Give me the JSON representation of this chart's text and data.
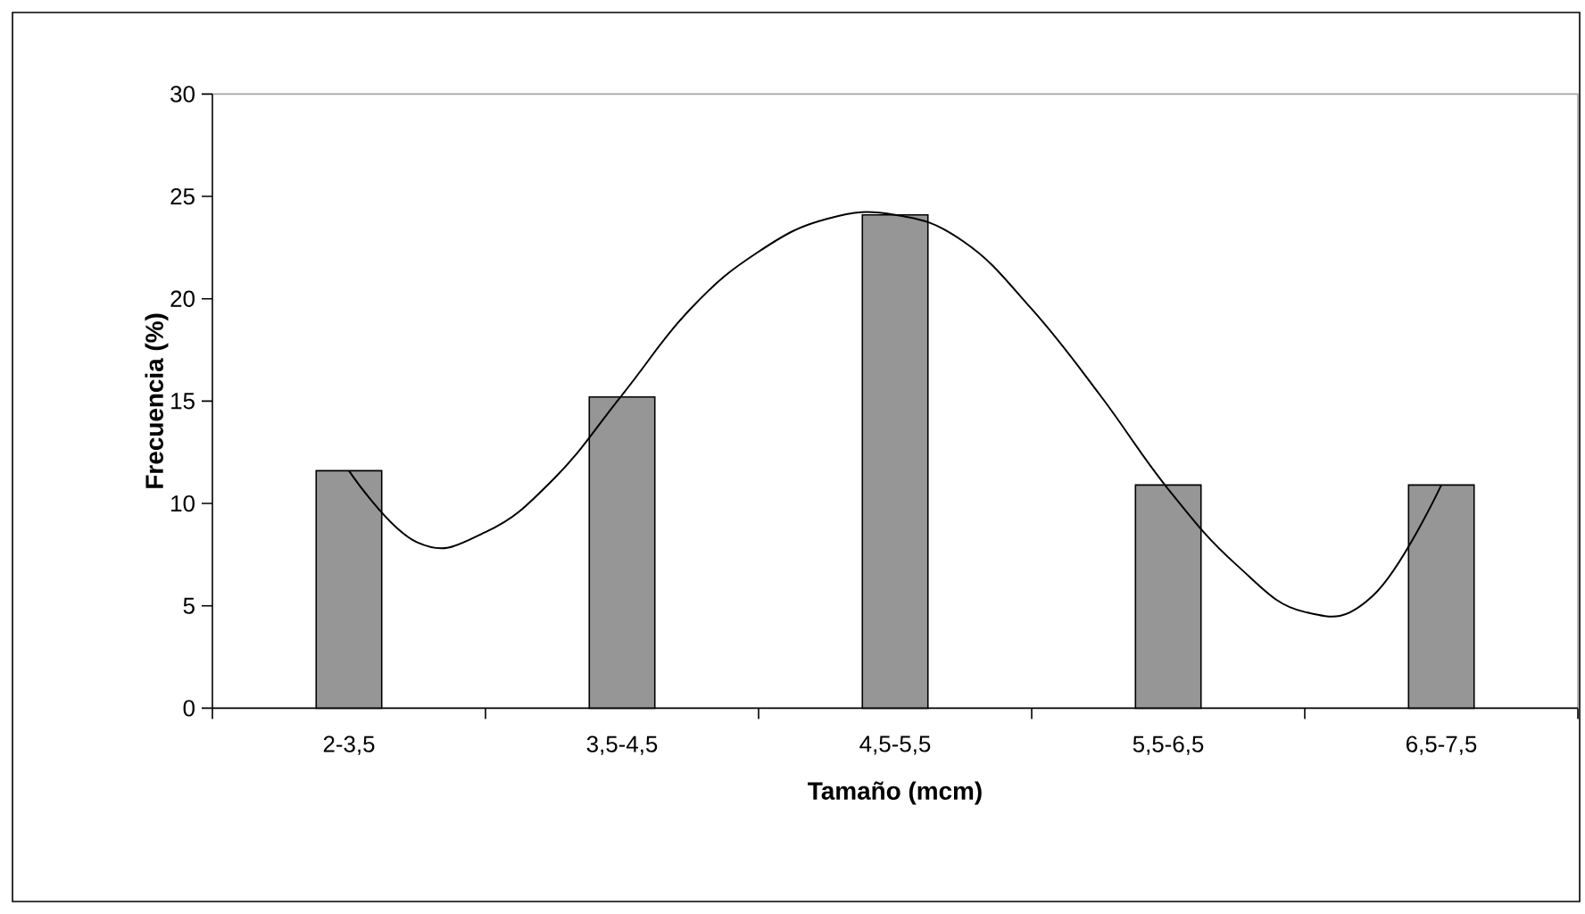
{
  "chart_data": {
    "type": "bar",
    "xlabel": "Tamaño (mcm)",
    "ylabel": "Frecuencia (%)",
    "categories": [
      "2-3,5",
      null,
      null,
      null,
      "3,5-4,5",
      null,
      null,
      null,
      "4,5-5,5",
      null,
      null,
      null,
      "5,5-6,5",
      null,
      null,
      null,
      "6,5-7,5"
    ],
    "ylim": [
      0,
      30
    ],
    "yticks": [
      0,
      5,
      10,
      15,
      20,
      25,
      30
    ],
    "series": [
      {
        "color": "#969696",
        "values": [
          11.6,
          null,
          null,
          null,
          15.2,
          null,
          null,
          null,
          24.1,
          null,
          null,
          null,
          10.9,
          null,
          null,
          null,
          10.9
        ]
      },
      {
        "type": "line",
        "color": "#000000",
        "values": [
          11.6,
          8.1,
          8.6,
          11.2,
          15.3,
          19.5,
          22.3,
          23.9,
          24.1,
          22.8,
          19.5,
          15.3,
          10.7,
          7.0,
          4.7,
          5.5,
          10.9
        ]
      }
    ]
  }
}
